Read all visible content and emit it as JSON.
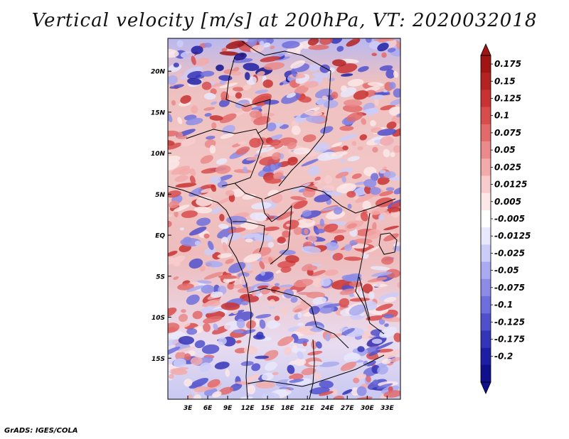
{
  "title": "Vertical velocity [m/s] at 200hPa, VT: 2020032018",
  "credit": "GrADS: IGES/COLA",
  "map": {
    "lat_labels": [
      "20N",
      "15N",
      "10N",
      "5N",
      "EQ",
      "5S",
      "10S",
      "15S"
    ],
    "lon_labels": [
      "3E",
      "6E",
      "9E",
      "12E",
      "15E",
      "18E",
      "21E",
      "24E",
      "27E",
      "30E",
      "33E"
    ],
    "lat_range": [
      -20,
      24
    ],
    "lon_range": [
      0,
      35
    ]
  },
  "colorbar": {
    "labels": [
      "0.175",
      "0.15",
      "0.125",
      "0.1",
      "0.075",
      "0.05",
      "0.025",
      "0.0125",
      "0.005",
      "-0.005",
      "-0.0125",
      "-0.025",
      "-0.05",
      "-0.075",
      "-0.1",
      "-0.125",
      "-0.175",
      "-0.2"
    ],
    "colors": [
      "#a01414",
      "#b42222",
      "#c83232",
      "#d84c4c",
      "#e26a6a",
      "#ea8a8a",
      "#f2aaaa",
      "#f8cccc",
      "#fce8e8",
      "#ffffff",
      "#e8e8fc",
      "#ccccf8",
      "#aaaaf0",
      "#8c8ce6",
      "#6e6edc",
      "#5050cc",
      "#3434b8",
      "#1e1ea4",
      "#10108c"
    ]
  }
}
